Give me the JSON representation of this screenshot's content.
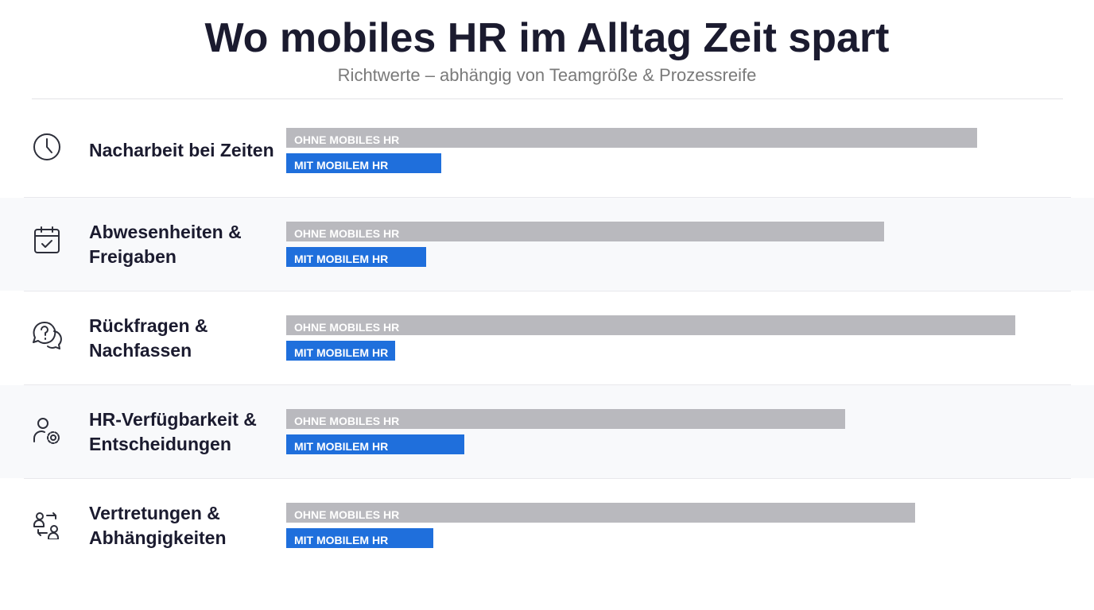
{
  "chart_data": {
    "type": "bar",
    "orientation": "horizontal",
    "title": "Wo mobiles HR im Alltag Zeit spart",
    "subtitle": "Richtwerte – abhängig von Teamgröße & Prozessreife",
    "categories": [
      "Nacharbeit bei Zeiten",
      "Abwesenheiten & Freigaben",
      "Rückfragen & Nachfassen",
      "HR-Verfügbarkeit & Entscheidungen",
      "Vertretungen & Abhängigkeiten"
    ],
    "series": [
      {
        "name": "OHNE MOBILES HR",
        "color": "#b9b9be",
        "values": [
          89,
          77,
          94,
          72,
          81
        ]
      },
      {
        "name": "MIT MOBILEM HR",
        "color": "#1f6fdc",
        "values": [
          20,
          18,
          14,
          23,
          19
        ]
      }
    ],
    "xlim": [
      0,
      100
    ]
  }
}
